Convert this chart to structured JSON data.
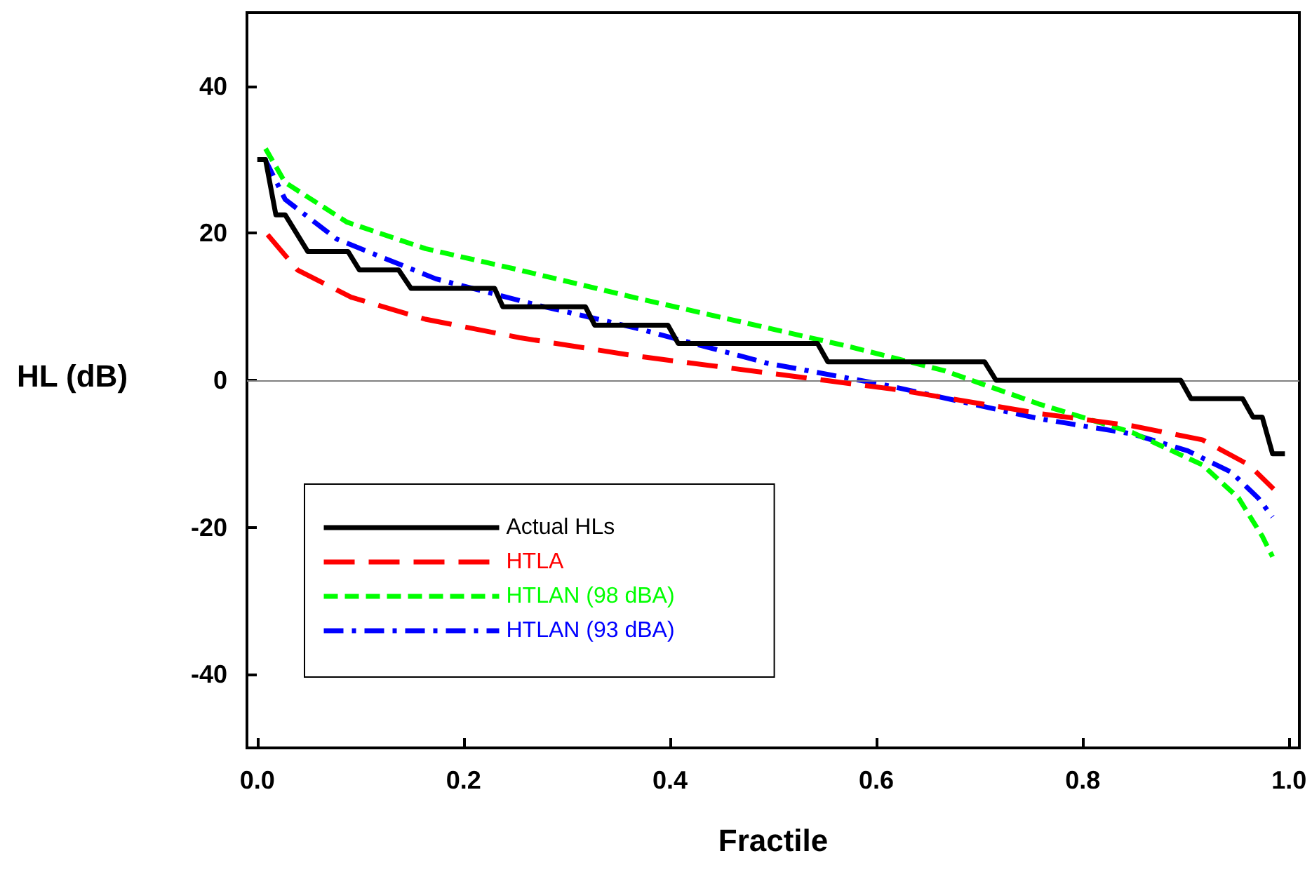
{
  "chart_data": {
    "type": "line",
    "xlabel": "Fractile",
    "ylabel": "HL (dB)",
    "xlim": [
      -0.01,
      1.01
    ],
    "ylim": [
      -50,
      50
    ],
    "xticks": [
      {
        "value": 0,
        "label": "0.0"
      },
      {
        "value": 0.2,
        "label": "0.2"
      },
      {
        "value": 0.4,
        "label": "0.4"
      },
      {
        "value": 0.6,
        "label": "0.6"
      },
      {
        "value": 0.8,
        "label": "0.8"
      },
      {
        "value": 1,
        "label": "1.0"
      }
    ],
    "yticks": [
      -40,
      -20,
      0,
      20,
      40
    ],
    "grid": false,
    "legend": "bottom left",
    "ref_lines": [
      {
        "axis": "y",
        "value": 0,
        "color": "#808080"
      }
    ],
    "series": [
      {
        "name": "Actual HLs",
        "color": "#000000",
        "line_style": "solid",
        "x": [
          0,
          0.008,
          0.018,
          0.027,
          0.049,
          0.088,
          0.099,
          0.137,
          0.149,
          0.23,
          0.238,
          0.318,
          0.327,
          0.398,
          0.408,
          0.543,
          0.553,
          0.705,
          0.716,
          0.895,
          0.905,
          0.955,
          0.965,
          0.974,
          0.984,
          0.996
        ],
        "values": [
          30,
          30,
          22.5,
          22.5,
          17.5,
          17.5,
          15,
          15,
          12.5,
          12.5,
          10,
          10,
          7.5,
          7.5,
          5,
          5,
          2.5,
          2.5,
          0,
          0,
          -2.5,
          -2.5,
          -5,
          -5,
          -10,
          -10
        ]
      },
      {
        "name": "HTLA",
        "color": "#ff0000",
        "line_style": "dashed",
        "x": [
          0.01,
          0.039,
          0.091,
          0.163,
          0.254,
          0.367,
          0.495,
          0.621,
          0.757,
          0.848,
          0.916,
          0.961,
          0.985
        ],
        "values": [
          19.8,
          15,
          11.3,
          8.3,
          5.8,
          3.3,
          1,
          -1.3,
          -4.5,
          -6.2,
          -8.1,
          -11.5,
          -14.8
        ]
      },
      {
        "name": "HTLAN (98 dBA)",
        "color": "#00ff00",
        "line_style": "dashed",
        "x": [
          0.008,
          0.027,
          0.087,
          0.163,
          0.254,
          0.367,
          0.495,
          0.576,
          0.666,
          0.757,
          0.848,
          0.916,
          0.951,
          0.974,
          0.984
        ],
        "values": [
          31.5,
          26.9,
          21.5,
          17.9,
          15,
          11.2,
          7.1,
          4.5,
          1.3,
          -3.2,
          -7.1,
          -11.5,
          -16,
          -21.2,
          -24
        ]
      },
      {
        "name": "HTLAN (93 dBA)",
        "color": "#0000ff",
        "line_style": "dashdot",
        "x": [
          0.007,
          0.027,
          0.077,
          0.173,
          0.272,
          0.367,
          0.495,
          0.607,
          0.757,
          0.848,
          0.902,
          0.944,
          0.97,
          0.984
        ],
        "values": [
          30.2,
          24.6,
          19.2,
          13.8,
          10.2,
          7.1,
          2.3,
          -0.6,
          -5.2,
          -7.3,
          -9.6,
          -12.5,
          -16,
          -18.6
        ]
      }
    ]
  }
}
